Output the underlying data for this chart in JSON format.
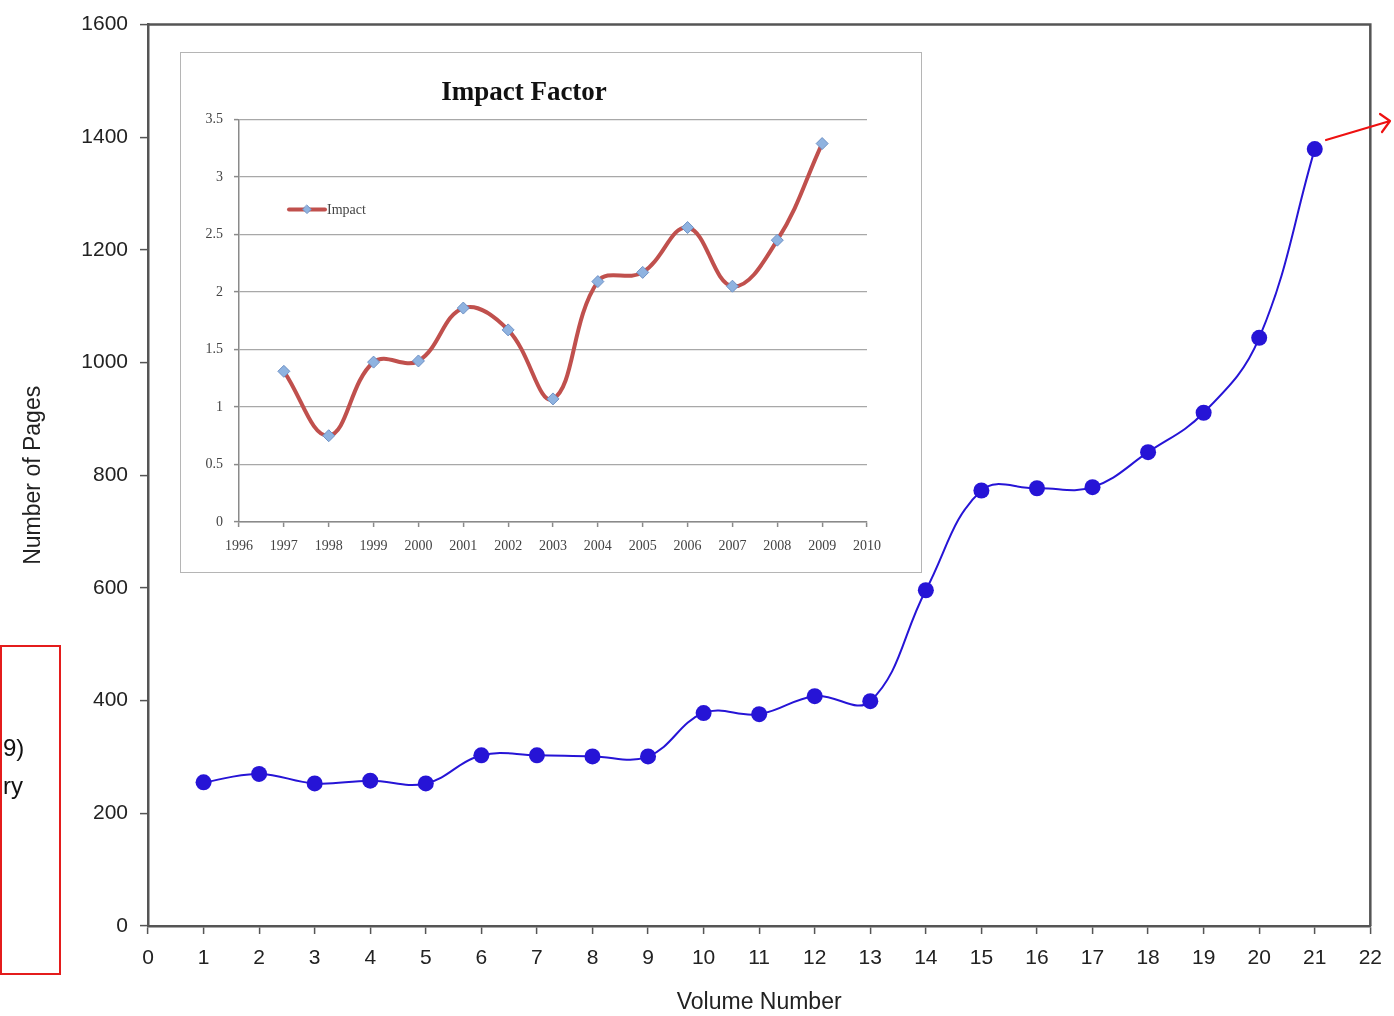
{
  "chart_data": [
    {
      "type": "line",
      "xlabel": "Volume Number",
      "ylabel": "Number of Pages",
      "x": [
        1,
        2,
        3,
        4,
        5,
        6,
        7,
        8,
        9,
        10,
        11,
        12,
        13,
        14,
        15,
        16,
        17,
        18,
        19,
        20,
        21
      ],
      "values": [
        255,
        270,
        253,
        258,
        253,
        303,
        303,
        301,
        301,
        378,
        376,
        408,
        399,
        596,
        773,
        777,
        779,
        841,
        911,
        1044,
        1379
      ],
      "color": "#2614d6",
      "xlim": [
        0,
        22
      ],
      "xticks": [
        0,
        1,
        2,
        3,
        4,
        5,
        6,
        7,
        8,
        9,
        10,
        11,
        12,
        13,
        14,
        15,
        16,
        17,
        18,
        19,
        20,
        21,
        22
      ],
      "ylim": [
        0,
        1600
      ],
      "yticks": [
        0,
        200,
        400,
        600,
        800,
        1000,
        1200,
        1400,
        1600
      ],
      "grid": false,
      "marker": "circle",
      "annotations": [
        "9)",
        "ry"
      ]
    },
    {
      "type": "line",
      "title": "Impact Factor",
      "x": [
        1997,
        1998,
        1999,
        2000,
        2001,
        2002,
        2003,
        2004,
        2005,
        2006,
        2007,
        2008,
        2009
      ],
      "series": [
        {
          "name": "Impact",
          "color": "#c0504d",
          "values": [
            1.31,
            0.75,
            1.39,
            1.4,
            1.86,
            1.67,
            1.07,
            2.09,
            2.17,
            2.56,
            2.05,
            2.45,
            3.29
          ]
        }
      ],
      "xlim": [
        1996,
        2010
      ],
      "xticks": [
        1996,
        1997,
        1998,
        1999,
        2000,
        2001,
        2002,
        2003,
        2004,
        2005,
        2006,
        2007,
        2008,
        2009,
        2010
      ],
      "ylim": [
        0,
        3.5
      ],
      "yticks": [
        0,
        0.5,
        1,
        1.5,
        2,
        2.5,
        3,
        3.5
      ],
      "grid": "y",
      "legend": "top left",
      "marker": "diamond"
    }
  ]
}
